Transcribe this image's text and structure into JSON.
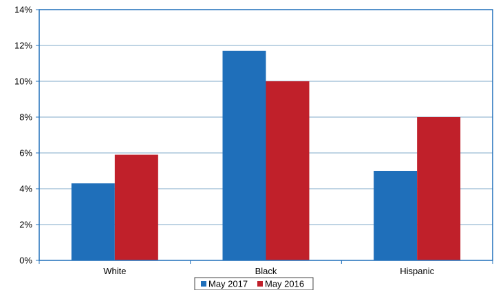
{
  "chart_data": {
    "type": "bar",
    "categories": [
      "White",
      "Black",
      "Hispanic"
    ],
    "series": [
      {
        "name": "May 2017",
        "values": [
          4.3,
          11.7,
          5.0
        ],
        "color": "#1f6fba"
      },
      {
        "name": "May 2016",
        "values": [
          5.9,
          10.0,
          8.0
        ],
        "color": "#c0202a"
      }
    ],
    "ylim": [
      0,
      14
    ],
    "yticks": [
      0,
      2,
      4,
      6,
      8,
      10,
      12,
      14
    ],
    "ytick_labels": [
      "0%",
      "2%",
      "4%",
      "6%",
      "8%",
      "10%",
      "12%",
      "14%"
    ],
    "grid": true,
    "legend_position": "bottom-center",
    "axis_color": "#1f6fba",
    "grid_color": "#7fa8c8"
  }
}
